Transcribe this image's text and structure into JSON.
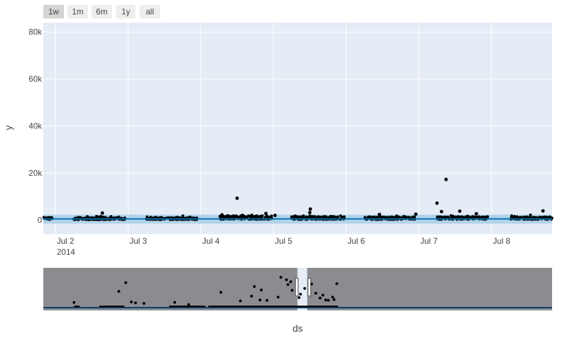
{
  "range_selector": {
    "buttons": [
      "1w",
      "1m",
      "6m",
      "1y",
      "all"
    ],
    "active": "1w"
  },
  "chart_data": {
    "type": "scatter",
    "xlabel": "ds",
    "ylabel": "y",
    "ylim": [
      -6000,
      84000
    ],
    "xlim": [
      "2014-07-01 20:00",
      "2014-07-08 20:00"
    ],
    "y_ticks": [
      {
        "value": 0,
        "label": "0"
      },
      {
        "value": 20000,
        "label": "20k"
      },
      {
        "value": 40000,
        "label": "40k"
      },
      {
        "value": 60000,
        "label": "60k"
      },
      {
        "value": 80000,
        "label": "80k"
      }
    ],
    "x_ticks": [
      {
        "value": "2014-07-02",
        "label": "Jul 2",
        "sublabel": "2014"
      },
      {
        "value": "2014-07-03",
        "label": "Jul 3",
        "sublabel": ""
      },
      {
        "value": "2014-07-04",
        "label": "Jul 4",
        "sublabel": ""
      },
      {
        "value": "2014-07-05",
        "label": "Jul 5",
        "sublabel": ""
      },
      {
        "value": "2014-07-06",
        "label": "Jul 6",
        "sublabel": ""
      },
      {
        "value": "2014-07-07",
        "label": "Jul 7",
        "sublabel": ""
      },
      {
        "value": "2014-07-08",
        "label": "Jul 8",
        "sublabel": ""
      }
    ],
    "grid": true,
    "colors": {
      "plot_bg": "#e5ecf6",
      "grid": "#ffffff",
      "points": "#000000",
      "forecast_line": "#0072b2",
      "uncertainty_band": "#9ec9e4",
      "rangeslider_bg": "#8a8c90",
      "rangeslider_window": "#e5ecf6"
    },
    "series": [
      {
        "kind": "points",
        "points": [
          [
            "2014-07-04 12:00",
            9300
          ],
          [
            "2014-07-05 12:10",
            4700
          ],
          [
            "2014-07-07 06:00",
            7200
          ],
          [
            "2014-07-07 09:00",
            17300
          ],
          [
            "2014-07-07 07:30",
            3600
          ],
          [
            "2014-07-07 13:30",
            3800
          ],
          [
            "2014-07-08 17:00",
            3900
          ],
          [
            "2014-07-02 15:30",
            3000
          ],
          [
            "2014-07-04 21:30",
            2800
          ],
          [
            "2014-07-05 12:00",
            3200
          ],
          [
            "2014-07-06 11:00",
            2400
          ],
          [
            "2014-07-06 23:00",
            2500
          ],
          [
            "2014-07-07 19:00",
            2700
          ],
          [
            "2014-07-05 00:30",
            2000
          ],
          [
            "2014-07-04 07:00",
            2200
          ]
        ]
      },
      {
        "kind": "dense_clusters",
        "clusters": [
          {
            "from": "2014-07-01 20:00",
            "to": "2014-07-01 23:00",
            "base": 700
          },
          {
            "from": "2014-07-02 06:00",
            "to": "2014-07-02 23:00",
            "base": 600
          },
          {
            "from": "2014-07-03 06:00",
            "to": "2014-07-03 23:00",
            "base": 600
          },
          {
            "from": "2014-07-04 06:00",
            "to": "2014-07-04 23:30",
            "base": 1100
          },
          {
            "from": "2014-07-05 06:00",
            "to": "2014-07-05 23:30",
            "base": 900
          },
          {
            "from": "2014-07-06 06:00",
            "to": "2014-07-06 23:00",
            "base": 800
          },
          {
            "from": "2014-07-07 06:00",
            "to": "2014-07-07 23:00",
            "base": 900
          },
          {
            "from": "2014-07-08 06:00",
            "to": "2014-07-08 20:00",
            "base": 800
          }
        ]
      },
      {
        "kind": "forecast",
        "yhat": 500,
        "band": [
          -1500,
          2300
        ]
      }
    ],
    "rangeslider": {
      "xlim": [
        "2014-01-01",
        "2014-12-31"
      ],
      "window": [
        "2014-07-01 20:00",
        "2014-07-08 20:00"
      ],
      "data_extent": [
        "2014-01-23",
        "2014-07-31"
      ],
      "ylim": [
        0,
        20000
      ],
      "outliers": [
        [
          "2014-01-23",
          2700
        ],
        [
          "2014-02-24",
          8500
        ],
        [
          "2014-03-01",
          13000
        ],
        [
          "2014-03-05",
          3000
        ],
        [
          "2014-03-08",
          2500
        ],
        [
          "2014-03-14",
          2200
        ],
        [
          "2014-04-05",
          2800
        ],
        [
          "2014-04-15",
          1600
        ],
        [
          "2014-05-08",
          8000
        ],
        [
          "2014-05-22",
          3500
        ],
        [
          "2014-06-05",
          4000
        ],
        [
          "2014-06-06",
          9200
        ],
        [
          "2014-06-10",
          3800
        ],
        [
          "2014-06-18",
          5500
        ],
        [
          "2014-06-24",
          14500
        ],
        [
          "2014-06-25",
          12000
        ],
        [
          "2014-06-27",
          13500
        ],
        [
          "2014-06-28",
          9000
        ],
        [
          "2014-07-03",
          5200
        ],
        [
          "2014-07-04",
          7000
        ],
        [
          "2014-07-07",
          10000
        ],
        [
          "2014-07-12",
          12200
        ],
        [
          "2014-07-15",
          7500
        ],
        [
          "2014-07-20",
          6500
        ],
        [
          "2014-07-22",
          4000
        ],
        [
          "2014-07-27",
          5500
        ],
        [
          "2014-07-28",
          4200
        ],
        [
          "2014-07-30",
          12500
        ],
        [
          "2014-06-20",
          15800
        ],
        [
          "2014-06-01",
          11000
        ],
        [
          "2014-05-30",
          6000
        ],
        [
          "2014-07-24",
          3800
        ],
        [
          "2014-07-18",
          5000
        ]
      ]
    }
  }
}
